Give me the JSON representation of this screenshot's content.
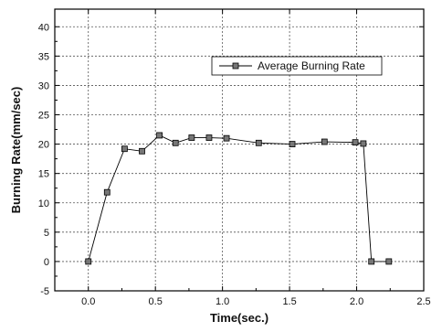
{
  "chart_data": {
    "type": "line",
    "xlabel": "Time(sec.)",
    "ylabel": "Burning Rate(mm/sec)",
    "xlim": [
      -0.25,
      2.5
    ],
    "ylim": [
      -5,
      43
    ],
    "xticks": [
      0.0,
      0.5,
      1.0,
      1.5,
      2.0,
      2.5
    ],
    "xtick_labels": [
      "0.0",
      "0.5",
      "1.0",
      "1.5",
      "2.0",
      "2.5"
    ],
    "yticks": [
      -5,
      0,
      5,
      10,
      15,
      20,
      25,
      30,
      35,
      40
    ],
    "ytick_labels": [
      "-5",
      "0",
      "5",
      "10",
      "15",
      "20",
      "25",
      "30",
      "35",
      "40"
    ],
    "grid": true,
    "legend_position": "top-right",
    "series": [
      {
        "name": "Average Burning Rate",
        "marker": "square",
        "color": "#777777",
        "x": [
          0.0,
          0.14,
          0.27,
          0.4,
          0.53,
          0.65,
          0.77,
          0.9,
          1.03,
          1.27,
          1.52,
          1.76,
          1.99,
          2.05,
          2.11,
          2.24
        ],
        "y": [
          0,
          11.8,
          19.2,
          18.8,
          21.5,
          20.2,
          21.1,
          21.1,
          21.0,
          20.2,
          20.0,
          20.4,
          20.3,
          20.1,
          0,
          0
        ]
      }
    ]
  }
}
